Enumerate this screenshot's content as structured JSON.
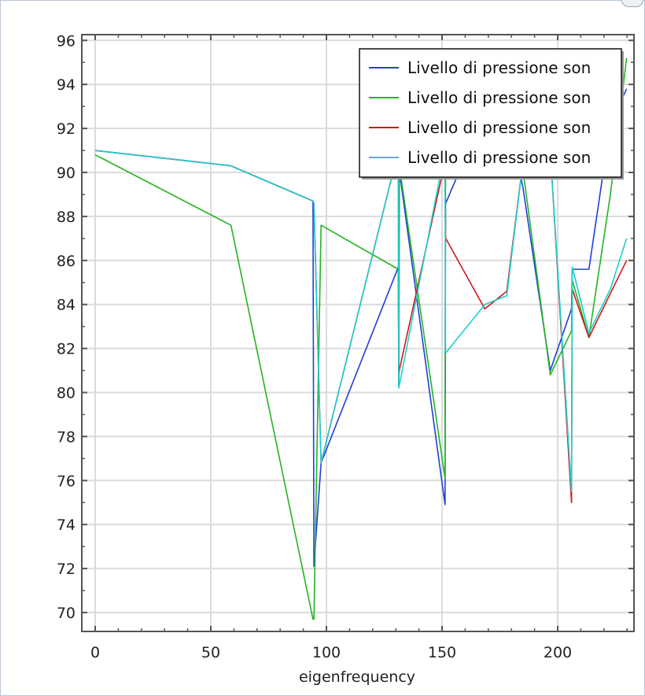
{
  "chart_data": {
    "type": "line",
    "title": "",
    "xlabel": "eigenfrequency",
    "ylabel": "",
    "xlim": [
      -6,
      232
    ],
    "ylim": [
      69.1,
      96.5
    ],
    "xticks": [
      0,
      50,
      100,
      150,
      200
    ],
    "yticks": [
      70,
      72,
      74,
      76,
      78,
      80,
      82,
      84,
      86,
      88,
      90,
      92,
      94,
      96
    ],
    "grid": true,
    "legend_position": "top-right",
    "series": [
      {
        "name": "Livello di pressione son",
        "color": "#1f3fd8",
        "x": [
          0,
          58.7,
          94.2,
          94.6,
          97.7,
          131.1,
          131.3,
          131.5,
          151.3,
          151.5,
          151.6,
          168.5,
          178,
          185,
          196.8,
          206,
          206.3,
          213.5,
          222.8,
          229.8
        ],
        "y": [
          91.0,
          90.3,
          88.7,
          72.1,
          76.8,
          85.7,
          80.3,
          90.1,
          74.9,
          88.5,
          88.6,
          92.8,
          92.9,
          89.3,
          81.0,
          83.8,
          85.6,
          85.6,
          92.2,
          93.8
        ]
      },
      {
        "name": "Livello di pressione son",
        "color": "#22b422",
        "x": [
          0,
          58.7,
          94.2,
          94.6,
          97.7,
          131.1,
          131.3,
          131.5,
          151.3,
          151.5,
          151.6,
          168.5,
          178,
          185,
          196.8,
          206,
          206.3,
          213.5,
          222.8,
          229.8
        ],
        "y": [
          90.8,
          87.6,
          69.7,
          69.7,
          87.6,
          85.6,
          80.3,
          90.3,
          76.1,
          89.5,
          91.0,
          92.4,
          93.0,
          90.1,
          80.8,
          82.8,
          85.1,
          82.5,
          89.0,
          95.2
        ]
      },
      {
        "name": "Livello di pressione son",
        "color": "#d01818",
        "x": [
          0,
          58.7,
          94.2,
          94.6,
          97.7,
          131.1,
          131.3,
          131.5,
          151.3,
          151.5,
          151.6,
          168.5,
          178,
          185,
          196.8,
          206,
          206.3,
          213.5,
          222.8,
          229.8
        ],
        "y": [
          91.0,
          90.3,
          88.7,
          88.6,
          76.8,
          91.0,
          80.7,
          81.0,
          90.5,
          87.0,
          87.0,
          83.8,
          84.6,
          90.5,
          91.0,
          75.0,
          84.7,
          82.5,
          84.5,
          86.0
        ]
      },
      {
        "name": "Livello di pressione son",
        "color": "#1ccfcf",
        "x": [
          0,
          58.7,
          94.2,
          94.6,
          97.7,
          131.1,
          131.3,
          131.5,
          151.3,
          151.5,
          151.6,
          168.5,
          178,
          185,
          196.8,
          206,
          206.3,
          213.5,
          222.8,
          229.8
        ],
        "y": [
          91.0,
          90.3,
          88.7,
          88.6,
          76.8,
          91.0,
          80.2,
          80.3,
          91.0,
          81.8,
          81.8,
          84.0,
          84.4,
          90.5,
          91.0,
          75.5,
          85.7,
          82.7,
          84.7,
          87.0
        ]
      }
    ]
  }
}
